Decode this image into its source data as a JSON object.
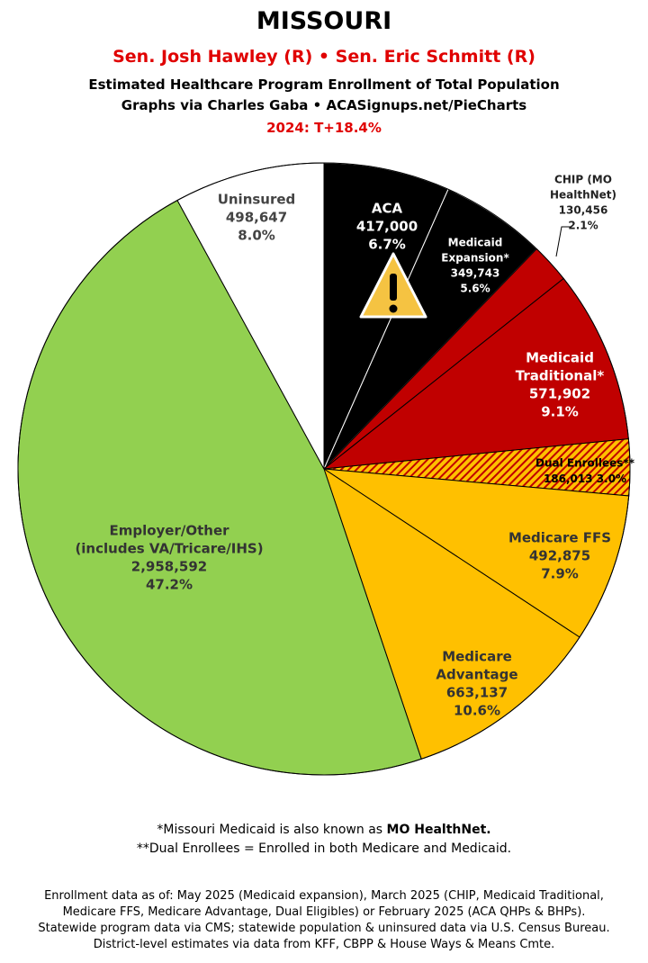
{
  "chart_data": {
    "type": "pie",
    "title": "MISSOURI",
    "senators": "Sen. Josh Hawley (R) • Sen. Eric Schmitt (R)",
    "subtitle": "Estimated Healthcare Program Enrollment of Total Population",
    "credit": "Graphs via Charles Gaba  •  ACASignups.net/PieCharts",
    "lean": "2024: T+18.4%",
    "categories": [
      [
        "ACA"
      ],
      [
        "Medicaid",
        "Expansion*"
      ],
      [
        "CHIP (MO",
        "HealthNet)"
      ],
      [
        "Medicaid",
        "Traditional*"
      ],
      [
        "Dual Enrollees**"
      ],
      [
        "Medicare FFS"
      ],
      [
        "Medicare",
        "Advantage"
      ],
      [
        "Employer/Other",
        "(includes VA/Tricare/IHS)"
      ],
      [
        "Uninsured"
      ]
    ],
    "values": [
      417000,
      349743,
      130456,
      571902,
      186013,
      492875,
      663137,
      2958592,
      498647
    ],
    "value_labels": [
      "417,000",
      "349,743",
      "130,456",
      "571,902",
      "186,013",
      "492,875",
      "663,137",
      "2,958,592",
      "498,647"
    ],
    "percents": [
      6.7,
      5.6,
      2.1,
      9.1,
      3.0,
      7.9,
      10.6,
      47.2,
      8.0
    ],
    "percent_labels": [
      "6.7%",
      "5.6%",
      "2.1%",
      "9.1%",
      "3.0%",
      "7.9%",
      "10.6%",
      "47.2%",
      "8.0%"
    ],
    "colors": [
      "#000000",
      "#000000",
      "#c00000",
      "#c00000",
      "hatch",
      "#ffc000",
      "#ffc000",
      "#92d050",
      "#ffffff"
    ]
  },
  "footnotes": [
    {
      "text": "*Missouri Medicaid is also known as ",
      "bold": "MO HealthNet."
    },
    "**Dual Enrollees = Enrolled in both Medicare and Medicaid."
  ],
  "sources": [
    "Enrollment data as of: May 2025 (Medicaid expansion), March 2025 (CHIP, Medicaid Traditional,",
    "Medicare FFS, Medicare Advantage, Dual Eligibles) or February 2025 (ACA QHPs & BHPs).",
    "Statewide program data via CMS; statewide population & uninsured data via U.S. Census Bureau.",
    "District-level estimates via data from KFF, CBPP & House Ways & Means Cmte."
  ]
}
